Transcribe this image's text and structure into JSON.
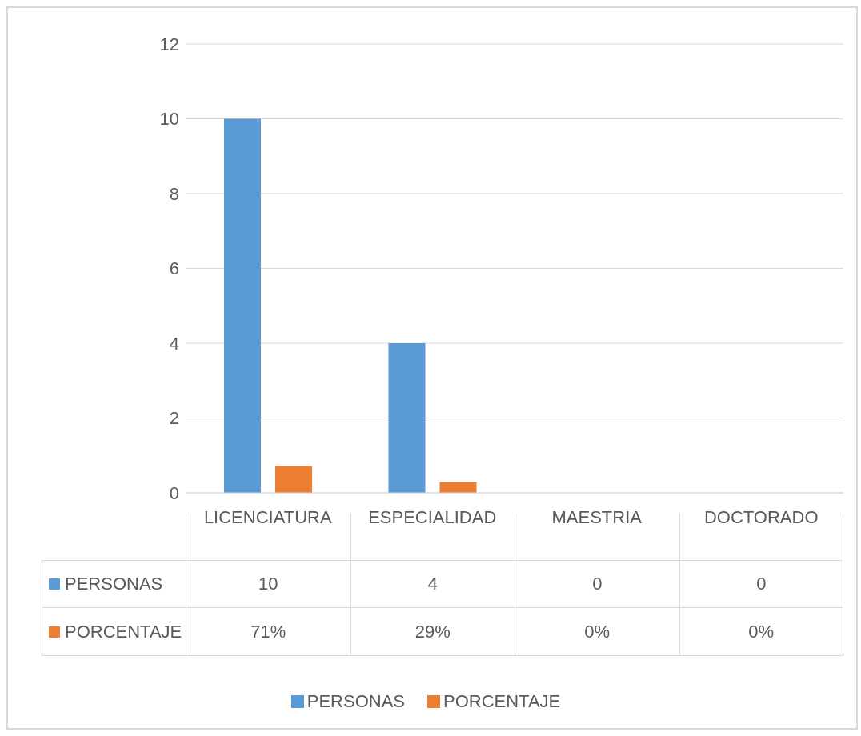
{
  "chart_data": {
    "type": "bar",
    "categories": [
      "LICENCIATURA",
      "ESPECIALIDAD",
      "MAESTRIA",
      "DOCTORADO"
    ],
    "series": [
      {
        "name": "PERSONAS",
        "color": "#5b9bd5",
        "values": [
          10,
          4,
          0,
          0
        ],
        "value_labels": [
          "10",
          "4",
          "0",
          "0"
        ]
      },
      {
        "name": "PORCENTAJE",
        "color": "#ed7d31",
        "values": [
          0.71,
          0.29,
          0,
          0
        ],
        "value_labels": [
          "71%",
          "29%",
          "0%",
          "0%"
        ]
      }
    ],
    "ylim": [
      0,
      12
    ],
    "yticks": [
      0,
      2,
      4,
      6,
      8,
      10,
      12
    ],
    "grid": "y",
    "legend": "bottom"
  }
}
